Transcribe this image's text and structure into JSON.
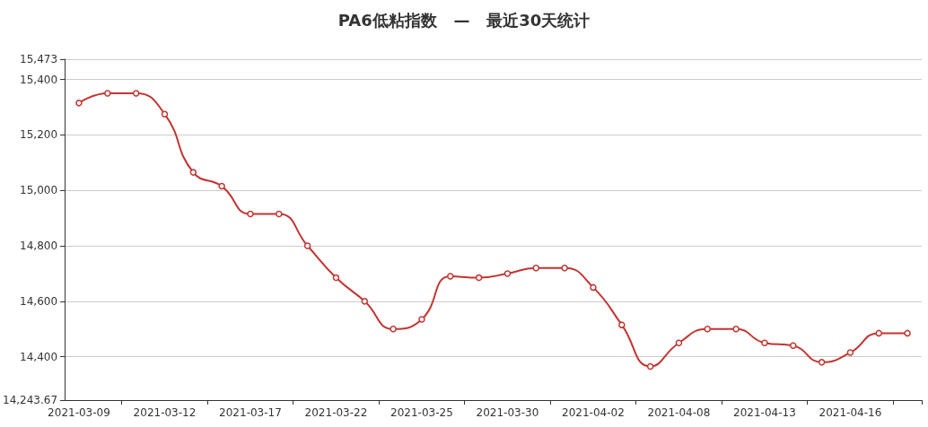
{
  "chart_data": {
    "type": "line",
    "title": "PA6低粘指数   —   最近30天统计",
    "categories": [
      "2021-03-09",
      null,
      null,
      "2021-03-12",
      null,
      null,
      "2021-03-17",
      null,
      null,
      "2021-03-22",
      null,
      null,
      "2021-03-25",
      null,
      null,
      "2021-03-30",
      null,
      null,
      "2021-04-02",
      null,
      null,
      "2021-04-08",
      null,
      null,
      "2021-04-13",
      null,
      null,
      "2021-04-16",
      null,
      null
    ],
    "series": [
      {
        "color": "#c23531",
        "values": [
          15315,
          15350,
          15350,
          15275,
          15065,
          15015,
          14915,
          14915,
          14800,
          14685,
          14600,
          14500,
          14535,
          14690,
          14685,
          14700,
          14720,
          14720,
          14650,
          14515,
          14365,
          14450,
          14500,
          14500,
          14450,
          14440,
          14380,
          14415,
          14485,
          14485
        ]
      }
    ],
    "ylim": [
      14243.67,
      15473
    ],
    "yticks": [
      {
        "value": 14243.67,
        "label": "14,243.67"
      },
      {
        "value": 14400,
        "label": "14,400"
      },
      {
        "value": 14600,
        "label": "14,600"
      },
      {
        "value": 14800,
        "label": "14,800"
      },
      {
        "value": 15000,
        "label": "15,000"
      },
      {
        "value": 15200,
        "label": "15,200"
      },
      {
        "value": 15400,
        "label": "15,400"
      },
      {
        "value": 15473,
        "label": "15,473"
      }
    ],
    "grid": "y",
    "marker": "circle",
    "line_style": "solid"
  }
}
